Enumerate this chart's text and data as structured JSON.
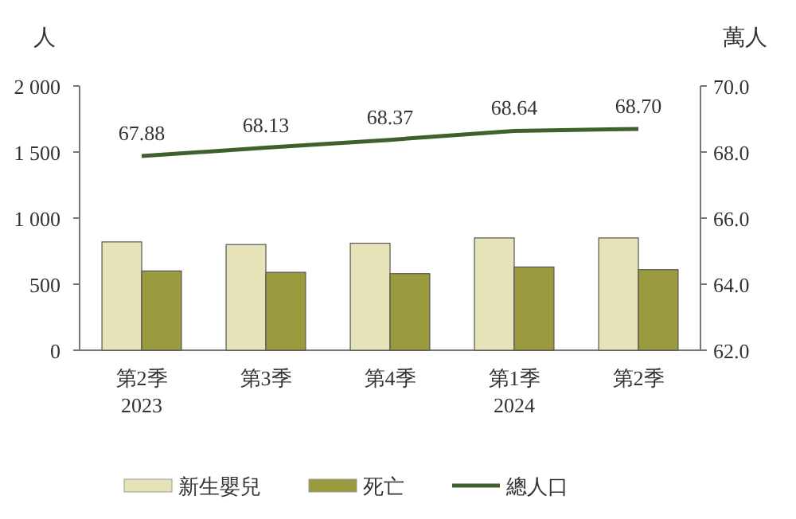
{
  "chart_data": {
    "type": "bar",
    "ylabel": "人",
    "y2label": "萬人",
    "categories": [
      "第2季\n2023",
      "第3季",
      "第4季",
      "第1季\n2024",
      "第2季"
    ],
    "series": [
      {
        "name": "新生嬰兒",
        "color": "#e6e3b8",
        "values": [
          820,
          800,
          810,
          850,
          850
        ]
      },
      {
        "name": "死亡",
        "color": "#9c9a3e",
        "values": [
          600,
          590,
          580,
          630,
          610
        ]
      },
      {
        "name": "總人口",
        "type": "line",
        "axis": "y2",
        "color": "#3f5f2c",
        "values": [
          67.88,
          68.13,
          68.37,
          68.64,
          68.7
        ],
        "value_labels": [
          "67.88",
          "68.13",
          "68.37",
          "68.64",
          "68.70"
        ]
      }
    ],
    "ylim": [
      0,
      2000
    ],
    "yticks": [
      0,
      500,
      {
        "value": 1000,
        "label": "1 000"
      },
      {
        "value": 1500,
        "label": "1 500"
      },
      {
        "value": 2000,
        "label": "2 000"
      }
    ],
    "y2lim": [
      62,
      70
    ],
    "y2ticks": [
      {
        "value": 62,
        "label": "62.0"
      },
      {
        "value": 64,
        "label": "64.0"
      },
      {
        "value": 66,
        "label": "66.0"
      },
      {
        "value": 68,
        "label": "68.0"
      },
      {
        "value": 70,
        "label": "70.0"
      }
    ],
    "grid": false,
    "legend": "bottom",
    "marker": "none",
    "line_style": "solid"
  }
}
